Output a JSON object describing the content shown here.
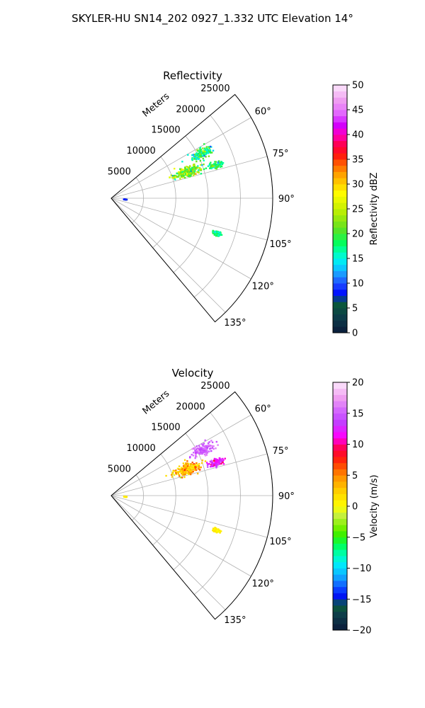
{
  "title": "SKYLER-HU  SN14_202  0927_1.332 UTC Elevation 14°",
  "chart_data": [
    {
      "type": "scatter",
      "subtype": "polar-sector-ppi",
      "title": "Reflectivity",
      "range_axis_label": "Meters",
      "range_ticks": [
        5000,
        10000,
        15000,
        20000,
        25000
      ],
      "range_tick_labels": [
        "5000",
        "10000",
        "15000",
        "20000",
        "25000"
      ],
      "range_max": 25000,
      "azimuth_range": [
        50,
        140
      ],
      "azimuth_ticks": [
        60,
        75,
        90,
        105,
        120,
        135
      ],
      "azimuth_tick_labels": [
        "60°",
        "75°",
        "90°",
        "105°",
        "120°",
        "135°"
      ],
      "grid": true,
      "colorbar": {
        "label": "Reflectivity dBZ",
        "min": 0,
        "max": 50,
        "ticks": [
          0,
          5,
          10,
          15,
          20,
          25,
          30,
          35,
          40,
          45,
          50
        ],
        "tick_labels": [
          "0",
          "5",
          "10",
          "15",
          "20",
          "25",
          "30",
          "35",
          "40",
          "45",
          "50"
        ]
      },
      "echoes": [
        {
          "azimuth": 71,
          "range": 12500,
          "az_spread": 3.0,
          "r_spread": 2200,
          "value": 22,
          "spread": 6
        },
        {
          "azimuth": 63.5,
          "range": 15800,
          "az_spread": 2.2,
          "r_spread": 1700,
          "value": 18,
          "spread": 5
        },
        {
          "azimuth": 72.5,
          "range": 17000,
          "az_spread": 1.5,
          "r_spread": 1100,
          "value": 18,
          "spread": 4
        },
        {
          "azimuth": 108.5,
          "range": 17200,
          "az_spread": 0.9,
          "r_spread": 700,
          "value": 17,
          "spread": 3
        },
        {
          "azimuth": 95,
          "range": 2200,
          "az_spread": 0.4,
          "r_spread": 200,
          "value": 8,
          "spread": 1
        }
      ]
    },
    {
      "type": "scatter",
      "subtype": "polar-sector-ppi",
      "title": "Velocity",
      "range_axis_label": "Meters",
      "range_ticks": [
        5000,
        10000,
        15000,
        20000,
        25000
      ],
      "range_tick_labels": [
        "5000",
        "10000",
        "15000",
        "20000",
        "25000"
      ],
      "range_max": 25000,
      "azimuth_range": [
        50,
        140
      ],
      "azimuth_ticks": [
        60,
        75,
        90,
        105,
        120,
        135
      ],
      "azimuth_tick_labels": [
        "60°",
        "75°",
        "90°",
        "105°",
        "120°",
        "135°"
      ],
      "grid": true,
      "colorbar": {
        "label": "Velocity (m/s)",
        "min": -20,
        "max": 20,
        "ticks": [
          -20,
          -15,
          -10,
          -5,
          0,
          5,
          10,
          15,
          20
        ],
        "tick_labels": [
          "−20",
          "−15",
          "−10",
          "−5",
          "0",
          "5",
          "10",
          "15",
          "20"
        ]
      },
      "echoes": [
        {
          "azimuth": 71,
          "range": 12500,
          "az_spread": 3.0,
          "r_spread": 2200,
          "value": 3,
          "spread": 3
        },
        {
          "azimuth": 63.5,
          "range": 15800,
          "az_spread": 2.2,
          "r_spread": 1700,
          "value": 15,
          "spread": 2
        },
        {
          "azimuth": 72.5,
          "range": 17000,
          "az_spread": 1.5,
          "r_spread": 1100,
          "value": 12,
          "spread": 2
        },
        {
          "azimuth": 108.5,
          "range": 17200,
          "az_spread": 0.9,
          "r_spread": 700,
          "value": 1,
          "spread": 1
        },
        {
          "azimuth": 95,
          "range": 2200,
          "az_spread": 0.4,
          "r_spread": 200,
          "value": 1,
          "spread": 0
        }
      ]
    }
  ],
  "colors": {
    "grid": "#b0b0b0",
    "frame": "#000000"
  }
}
